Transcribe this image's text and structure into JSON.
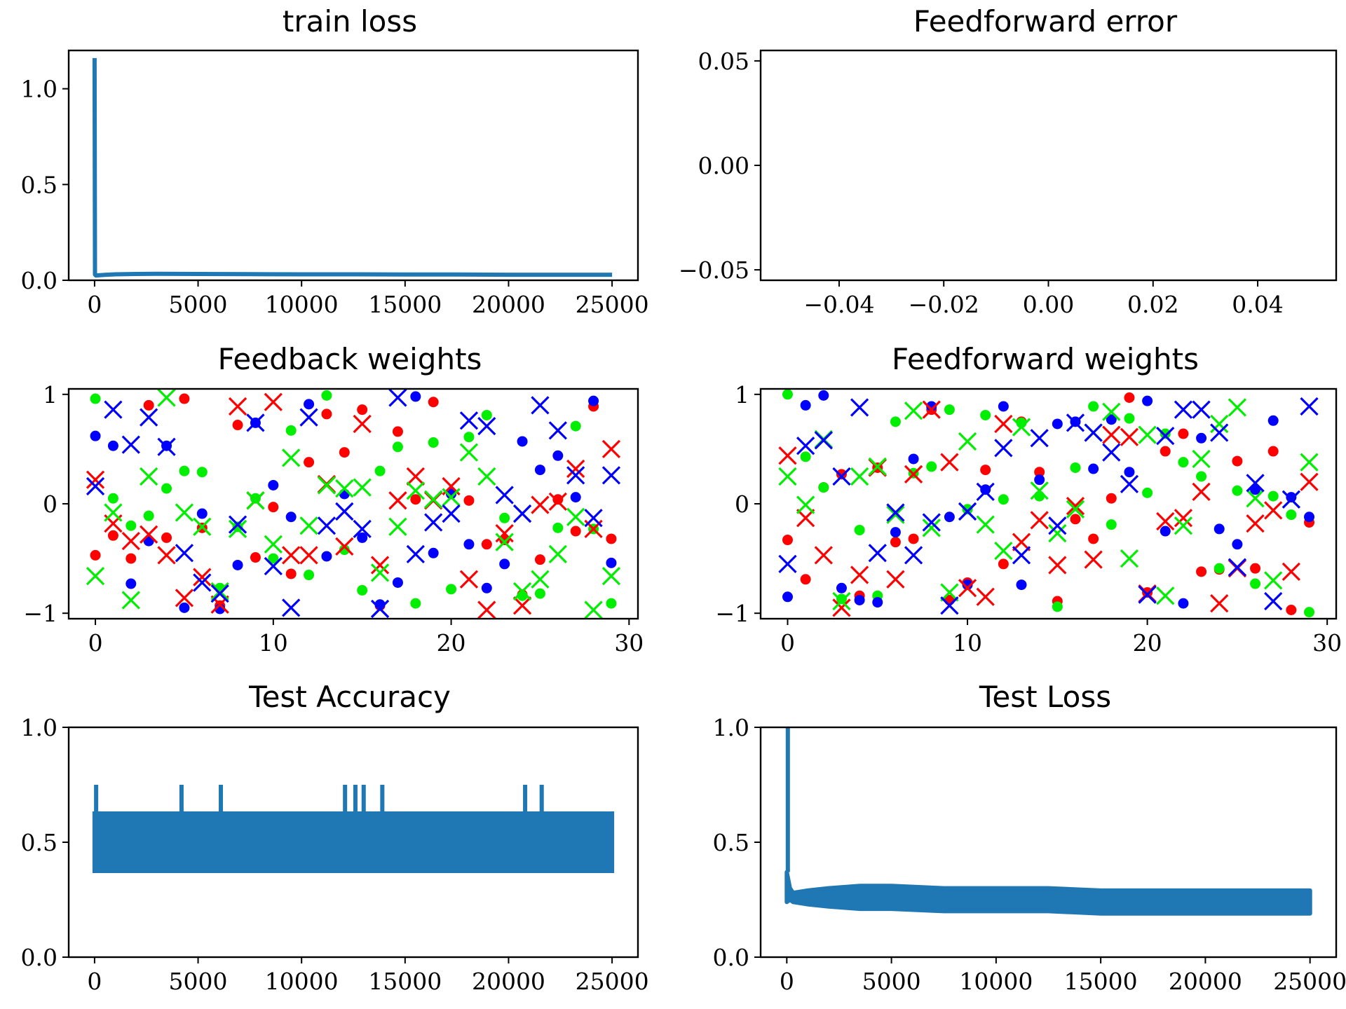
{
  "chart_data": [
    {
      "id": "train_loss",
      "type": "line",
      "title": "train loss",
      "xlim": [
        -1250,
        26250
      ],
      "ylim": [
        0,
        1.2
      ],
      "xticks": [
        0,
        5000,
        10000,
        15000,
        20000,
        25000
      ],
      "xtick_labels": [
        "0",
        "5000",
        "10000",
        "15000",
        "20000",
        "25000"
      ],
      "yticks": [
        0,
        0.5,
        1.0
      ],
      "ytick_labels": [
        "0.0",
        "0.5",
        "1.0"
      ],
      "color": "#1f77b4",
      "series": [
        {
          "x": [
            0,
            20,
            60,
            200,
            500,
            1000,
            2000,
            3000,
            5000,
            7500,
            10000,
            12500,
            15000,
            17500,
            20000,
            22500,
            25000
          ],
          "values": [
            1.16,
            0.03,
            0.025,
            0.026,
            0.028,
            0.031,
            0.033,
            0.034,
            0.033,
            0.032,
            0.031,
            0.031,
            0.03,
            0.03,
            0.029,
            0.029,
            0.029
          ]
        }
      ]
    },
    {
      "id": "feedforward_error",
      "type": "line",
      "title": "Feedforward error",
      "xlim": [
        -0.055,
        0.055
      ],
      "ylim": [
        -0.055,
        0.055
      ],
      "xticks": [
        -0.04,
        -0.02,
        0.0,
        0.02,
        0.04
      ],
      "xtick_labels": [
        "−0.04",
        "−0.02",
        "0.00",
        "0.02",
        "0.04"
      ],
      "yticks": [
        -0.05,
        0.0,
        0.05
      ],
      "ytick_labels": [
        "−0.05",
        "0.00",
        "0.05"
      ],
      "series": []
    },
    {
      "id": "feedback_weights",
      "type": "scatter",
      "title": "Feedback weights",
      "xlim": [
        -1.5,
        30.5
      ],
      "ylim": [
        -1.05,
        1.05
      ],
      "xticks": [
        0,
        10,
        20,
        30
      ],
      "xtick_labels": [
        "0",
        "10",
        "20",
        "30"
      ],
      "yticks": [
        -1,
        0,
        1
      ],
      "ytick_labels": [
        "−1",
        "0",
        "1"
      ],
      "series": [
        {
          "marker": "dot",
          "color": "#ff0000",
          "values": [
            -0.47,
            -0.29,
            -0.5,
            0.9,
            -0.31,
            0.96,
            -0.22,
            -0.93,
            0.72,
            -0.49,
            -0.03,
            -0.64,
            0.38,
            0.82,
            0.47,
            0.86,
            -0.93,
            0.66,
            0.04,
            0.93,
            0.1,
            0.03,
            -0.37,
            -0.33,
            -0.83,
            -0.51,
            0.04,
            -0.25,
            0.89,
            -0.32
          ]
        },
        {
          "marker": "dot",
          "color": "#00ee00",
          "values": [
            0.96,
            0.05,
            -0.2,
            -0.11,
            0.14,
            0.3,
            0.29,
            -0.77,
            -0.21,
            0.05,
            -0.5,
            0.67,
            -0.65,
            0.99,
            -0.42,
            -0.79,
            0.3,
            0.52,
            -0.91,
            0.56,
            -0.78,
            0.61,
            0.81,
            -0.13,
            -0.84,
            -0.82,
            -0.22,
            0.71,
            -0.23,
            -0.91
          ]
        },
        {
          "marker": "dot",
          "color": "#0000ff",
          "values": [
            0.62,
            0.53,
            -0.73,
            -0.34,
            0.53,
            -0.95,
            -0.09,
            -0.96,
            -0.56,
            0.74,
            0.17,
            -0.12,
            0.91,
            -0.48,
            0.09,
            -0.31,
            -0.92,
            -0.72,
            0.98,
            -0.45,
            0.09,
            -0.37,
            -0.77,
            -0.55,
            0.57,
            0.31,
            0.44,
            0.06,
            0.94,
            -0.54
          ]
        },
        {
          "marker": "x",
          "color": "#ff0000",
          "values": [
            0.22,
            -0.18,
            -0.34,
            -0.28,
            -0.47,
            -0.86,
            -0.67,
            -0.92,
            0.89,
            0.03,
            0.93,
            -0.47,
            -0.47,
            0.18,
            -0.39,
            0.73,
            -0.56,
            0.03,
            0.25,
            0.03,
            0.16,
            -0.69,
            -0.97,
            -0.27,
            -0.93,
            -0.01,
            0.02,
            0.32,
            -0.23,
            0.5
          ]
        },
        {
          "marker": "x",
          "color": "#00ee00",
          "values": [
            -0.66,
            -0.08,
            -0.88,
            0.25,
            0.97,
            -0.08,
            -0.21,
            -0.8,
            -0.23,
            0.03,
            -0.37,
            0.42,
            -0.2,
            0.17,
            0.14,
            0.15,
            -0.63,
            -0.21,
            0.12,
            0.04,
            0.06,
            0.47,
            0.25,
            -0.35,
            -0.8,
            -0.69,
            -0.46,
            -0.12,
            -0.97,
            -0.66
          ]
        },
        {
          "marker": "x",
          "color": "#0000ff",
          "values": [
            0.16,
            0.86,
            0.54,
            0.79,
            0.52,
            -0.45,
            -0.72,
            -0.82,
            -0.19,
            0.74,
            -0.57,
            -0.95,
            0.79,
            -0.2,
            -0.07,
            -0.23,
            -0.96,
            0.97,
            -0.46,
            -0.17,
            -0.09,
            0.76,
            0.71,
            0.08,
            -0.09,
            0.9,
            0.67,
            0.26,
            -0.13,
            0.26
          ]
        }
      ]
    },
    {
      "id": "feedforward_weights",
      "type": "scatter",
      "title": "Feedforward weights",
      "xlim": [
        -1.5,
        30.5
      ],
      "ylim": [
        -1.05,
        1.05
      ],
      "xticks": [
        0,
        10,
        20,
        30
      ],
      "xtick_labels": [
        "0",
        "10",
        "20",
        "30"
      ],
      "yticks": [
        -1,
        0,
        1
      ],
      "ytick_labels": [
        "−1",
        "0",
        "1"
      ],
      "series": [
        {
          "marker": "dot",
          "color": "#ff0000",
          "values": [
            -0.33,
            -0.69,
            0.15,
            0.27,
            -0.84,
            0.33,
            -0.35,
            -0.32,
            0.86,
            -0.88,
            -0.72,
            0.31,
            -0.55,
            0.75,
            0.29,
            -0.89,
            -0.14,
            -0.32,
            0.05,
            0.97,
            -0.81,
            0.48,
            0.64,
            -0.62,
            -0.6,
            0.39,
            -0.59,
            0.48,
            -0.97,
            -0.17
          ]
        },
        {
          "marker": "dot",
          "color": "#00ee00",
          "values": [
            1.0,
            0.43,
            0.15,
            -0.87,
            -0.24,
            -0.84,
            0.75,
            0.28,
            0.34,
            0.86,
            -0.05,
            0.81,
            0.04,
            0.74,
            0.07,
            -0.94,
            0.33,
            0.89,
            -0.19,
            0.78,
            0.1,
            0.64,
            0.38,
            0.25,
            -0.59,
            0.12,
            -0.73,
            0.07,
            -0.1,
            -0.99
          ]
        },
        {
          "marker": "dot",
          "color": "#0000ff",
          "values": [
            -0.85,
            0.9,
            0.99,
            -0.77,
            -0.88,
            -0.9,
            -0.26,
            0.41,
            0.89,
            -0.12,
            -0.74,
            0.13,
            0.89,
            -0.74,
            0.22,
            0.73,
            0.75,
            0.32,
            0.77,
            0.29,
            0.94,
            -0.25,
            -0.91,
            0.6,
            -0.23,
            -0.37,
            0.13,
            0.76,
            0.06,
            -0.12
          ]
        },
        {
          "marker": "x",
          "color": "#ff0000",
          "values": [
            0.44,
            -0.13,
            -0.47,
            -0.95,
            -0.65,
            0.33,
            -0.69,
            0.27,
            0.86,
            0.38,
            -0.77,
            -0.85,
            0.73,
            -0.35,
            -0.15,
            -0.56,
            -0.02,
            -0.51,
            0.63,
            0.61,
            -0.82,
            -0.16,
            -0.13,
            0.11,
            -0.91,
            -0.59,
            -0.18,
            -0.06,
            -0.62,
            0.2
          ]
        },
        {
          "marker": "x",
          "color": "#00ee00",
          "values": [
            0.25,
            -0.01,
            0.59,
            -0.89,
            0.25,
            0.34,
            -0.1,
            0.85,
            -0.22,
            -0.81,
            0.57,
            -0.19,
            -0.43,
            0.7,
            0.12,
            -0.27,
            -0.05,
            0.65,
            0.84,
            -0.5,
            0.63,
            -0.84,
            -0.2,
            0.41,
            0.73,
            0.88,
            0.05,
            -0.7,
            0.04,
            0.38
          ]
        },
        {
          "marker": "x",
          "color": "#0000ff",
          "values": [
            -0.55,
            0.53,
            0.58,
            0.25,
            0.88,
            -0.45,
            -0.08,
            -0.47,
            -0.17,
            -0.93,
            -0.07,
            0.11,
            0.51,
            -0.47,
            0.6,
            -0.2,
            0.74,
            0.65,
            0.47,
            0.18,
            -0.83,
            0.62,
            0.86,
            0.86,
            0.65,
            -0.58,
            0.19,
            -0.89,
            0.04,
            0.89
          ]
        }
      ]
    },
    {
      "id": "test_accuracy",
      "type": "line",
      "title": "Test Accuracy",
      "xlim": [
        -1250,
        26250
      ],
      "ylim": [
        0,
        1.0
      ],
      "xticks": [
        0,
        5000,
        10000,
        15000,
        20000,
        25000
      ],
      "xtick_labels": [
        "0",
        "5000",
        "10000",
        "15000",
        "20000",
        "25000"
      ],
      "yticks": [
        0,
        0.5,
        1.0
      ],
      "ytick_labels": [
        "0.0",
        "0.5",
        "1.0"
      ],
      "color": "#1f77b4",
      "band": {
        "x_start": 0,
        "x_end": 25000,
        "low": 0.375,
        "high": 0.625
      },
      "spikes": [
        {
          "x": 75,
          "value": 0.75
        },
        {
          "x": 4200,
          "value": 0.75
        },
        {
          "x": 6100,
          "value": 0.75
        },
        {
          "x": 12100,
          "value": 0.75
        },
        {
          "x": 12600,
          "value": 0.75
        },
        {
          "x": 13000,
          "value": 0.75
        },
        {
          "x": 13900,
          "value": 0.75
        },
        {
          "x": 20800,
          "value": 0.75
        },
        {
          "x": 21600,
          "value": 0.75
        }
      ]
    },
    {
      "id": "test_loss",
      "type": "line",
      "title": "Test Loss",
      "xlim": [
        -1250,
        26250
      ],
      "ylim": [
        0,
        1.0
      ],
      "xticks": [
        0,
        5000,
        10000,
        15000,
        20000,
        25000
      ],
      "xtick_labels": [
        "0",
        "5000",
        "10000",
        "15000",
        "20000",
        "25000"
      ],
      "yticks": [
        0,
        0.5,
        1.0
      ],
      "ytick_labels": [
        "0.0",
        "0.5",
        "1.0"
      ],
      "color": "#1f77b4",
      "spike": {
        "x": 50,
        "value": 1.0
      },
      "upper": {
        "x": [
          0,
          150,
          300,
          1000,
          2000,
          3500,
          5000,
          7500,
          10000,
          12500,
          15000,
          17500,
          20000,
          22500,
          25000
        ],
        "values": [
          0.37,
          0.3,
          0.28,
          0.29,
          0.3,
          0.31,
          0.31,
          0.3,
          0.3,
          0.3,
          0.29,
          0.29,
          0.29,
          0.29,
          0.29
        ]
      },
      "lower": {
        "x": [
          0,
          150,
          300,
          1000,
          2000,
          3500,
          5000,
          7500,
          10000,
          12500,
          15000,
          17500,
          20000,
          22500,
          25000
        ],
        "values": [
          0.24,
          0.25,
          0.24,
          0.23,
          0.22,
          0.21,
          0.21,
          0.2,
          0.2,
          0.2,
          0.19,
          0.19,
          0.19,
          0.19,
          0.19
        ]
      }
    }
  ]
}
